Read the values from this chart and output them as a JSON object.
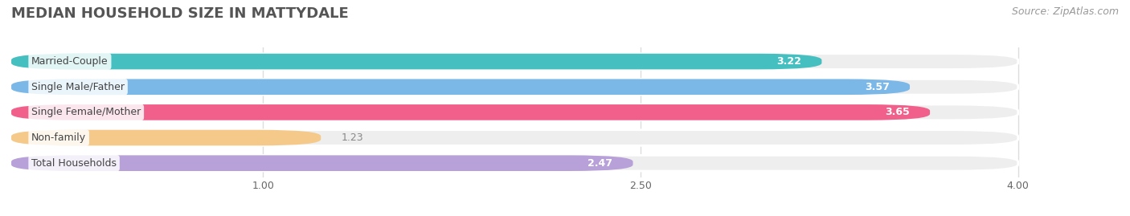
{
  "title": "MEDIAN HOUSEHOLD SIZE IN MATTYDALE",
  "source": "Source: ZipAtlas.com",
  "categories": [
    "Married-Couple",
    "Single Male/Father",
    "Single Female/Mother",
    "Non-family",
    "Total Households"
  ],
  "values": [
    3.22,
    3.57,
    3.65,
    1.23,
    2.47
  ],
  "bar_colors": [
    "#45BFBF",
    "#7BB8E8",
    "#F0608A",
    "#F5C98A",
    "#B8A0D8"
  ],
  "xlim": [
    0,
    4.4
  ],
  "xmin": 0,
  "xmax": 4.0,
  "xticks": [
    1.0,
    2.5,
    4.0
  ],
  "xtick_labels": [
    "1.00",
    "2.50",
    "4.00"
  ],
  "value_label_color_inside": "#ffffff",
  "value_label_color_outside": "#888888",
  "bar_height": 0.62,
  "background_color": "#ffffff",
  "bar_background_color": "#eeeeee",
  "title_fontsize": 13,
  "label_fontsize": 9,
  "value_fontsize": 9,
  "source_fontsize": 9,
  "inside_threshold": 2.0,
  "rounding": 0.25,
  "grid_color": "#dddddd"
}
